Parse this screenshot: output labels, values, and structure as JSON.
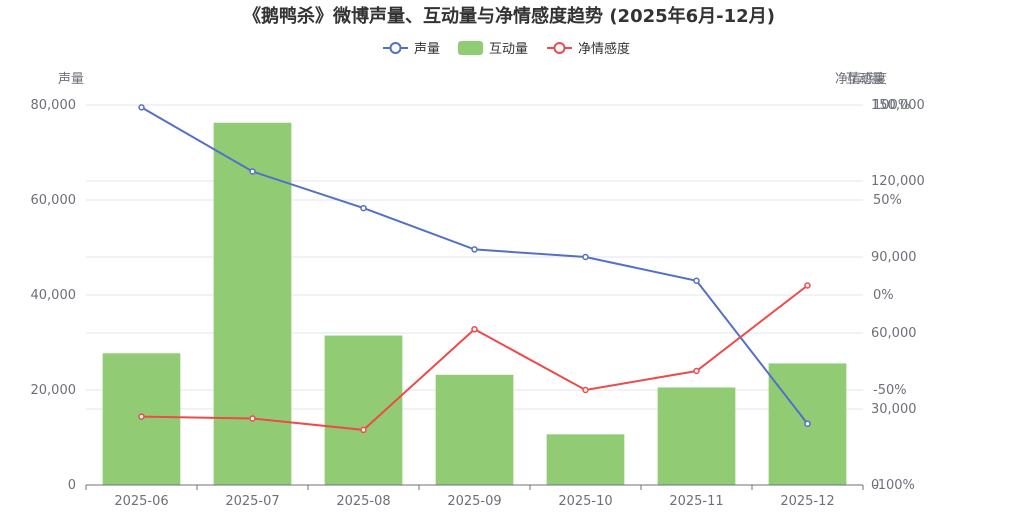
{
  "chart_data": {
    "type": "bar+line",
    "title": "《鹅鸭杀》微博声量、互动量与净情感度趋势 (2025年6月-12月)",
    "categories": [
      "2025-06",
      "2025-07",
      "2025-08",
      "2025-09",
      "2025-10",
      "2025-11",
      "2025-12"
    ],
    "series": [
      {
        "name": "声量",
        "type": "line",
        "axis": "left",
        "color": "#5470c6",
        "values": [
          79500,
          66000,
          58300,
          49600,
          48000,
          43000,
          12900
        ]
      },
      {
        "name": "互动量",
        "type": "bar",
        "axis": "right1",
        "color": "#91cc75",
        "values": [
          52000,
          143000,
          59000,
          43500,
          20000,
          38500,
          48000
        ]
      },
      {
        "name": "净情感度",
        "type": "line",
        "axis": "right2",
        "color": "#ee4a4a",
        "values": [
          -64,
          -65,
          -71,
          -18,
          -50,
          -40,
          5
        ]
      }
    ],
    "axes": {
      "left": {
        "name": "声量",
        "min": 0,
        "max": 80000,
        "ticks": [
          "0",
          "20,000",
          "40,000",
          "60,000",
          "80,000"
        ]
      },
      "right1": {
        "name": "互动量",
        "min": 0,
        "max": 150000,
        "ticks": [
          "0",
          "30,000",
          "60,000",
          "90,000",
          "120,000",
          "150,000"
        ]
      },
      "right2": {
        "name": "净情感度",
        "min": -100,
        "max": 100,
        "ticks": [
          "-100%",
          "-50%",
          "0%",
          "50%",
          "100%"
        ]
      }
    },
    "legend_position": "top-center",
    "grid": true
  }
}
